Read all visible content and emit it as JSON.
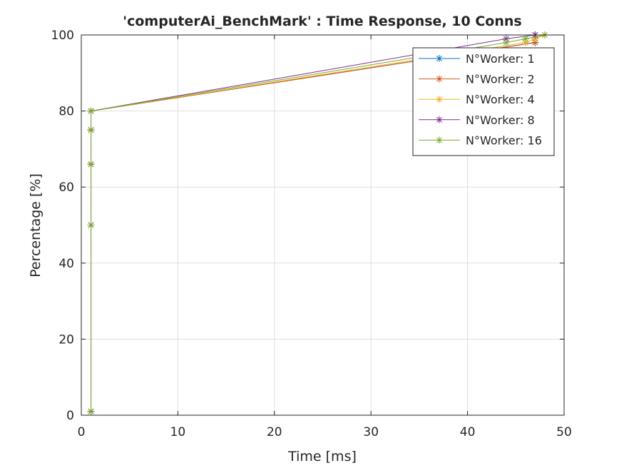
{
  "chart_data": {
    "type": "line",
    "title": "'computerAi_BenchMark' : Time Response, 10 Conns",
    "xlabel": "Time [ms]",
    "ylabel": "Percentage [%]",
    "xlim": [
      0,
      50
    ],
    "ylim": [
      0,
      100
    ],
    "xticks": [
      0,
      10,
      20,
      30,
      40,
      50
    ],
    "yticks": [
      0,
      20,
      40,
      60,
      80,
      100
    ],
    "grid": true,
    "legend_position": "top-right",
    "marker": "asterisk",
    "series": [
      {
        "name": "N°Worker: 1",
        "color": "#0072bd",
        "x": [
          1,
          1,
          1,
          1,
          1,
          47,
          47,
          47
        ],
        "y": [
          1,
          50,
          66,
          75,
          80,
          98,
          99,
          100
        ]
      },
      {
        "name": "N°Worker: 2",
        "color": "#d95319",
        "x": [
          1,
          1,
          1,
          1,
          1,
          47,
          47
        ],
        "y": [
          1,
          50,
          66,
          75,
          80,
          98,
          100
        ]
      },
      {
        "name": "N°Worker: 4",
        "color": "#edb120",
        "x": [
          1,
          1,
          1,
          1,
          1,
          46,
          47,
          48
        ],
        "y": [
          1,
          50,
          66,
          75,
          80,
          98,
          99,
          100
        ]
      },
      {
        "name": "N°Worker: 8",
        "color": "#7e2f8e",
        "x": [
          1,
          1,
          1,
          1,
          1,
          44,
          47
        ],
        "y": [
          1,
          50,
          66,
          75,
          80,
          99,
          100
        ]
      },
      {
        "name": "N°Worker: 16",
        "color": "#77ac30",
        "x": [
          1,
          1,
          1,
          1,
          1,
          44,
          46,
          48
        ],
        "y": [
          1,
          50,
          66,
          75,
          80,
          98,
          99,
          100
        ]
      }
    ]
  }
}
